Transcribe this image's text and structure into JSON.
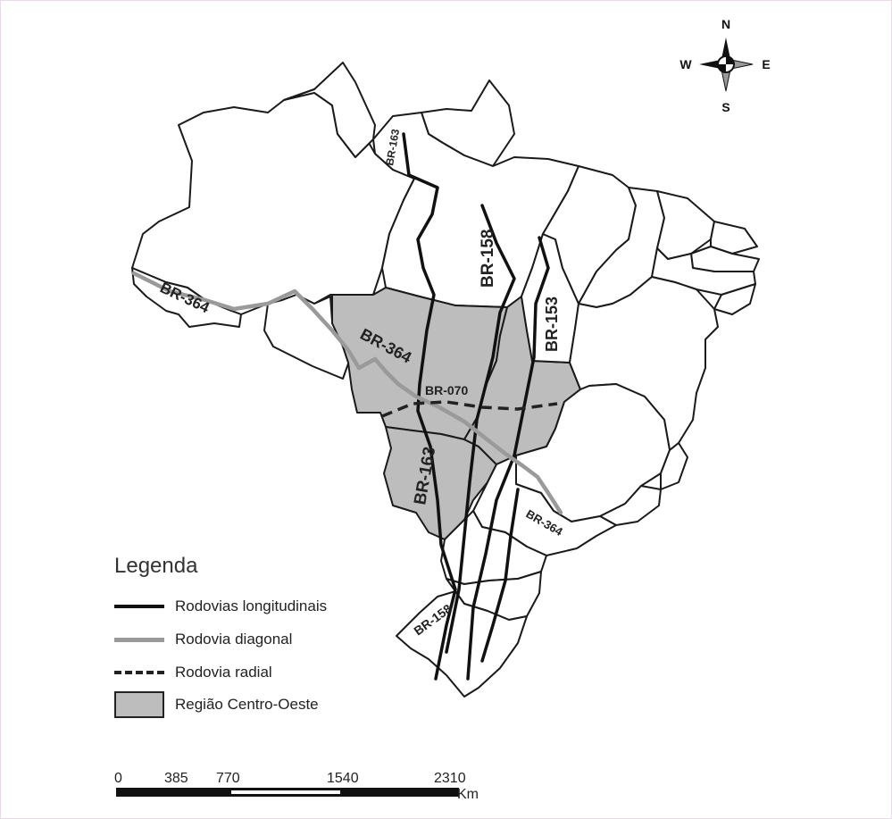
{
  "compass": {
    "north": "N",
    "south": "S",
    "east": "E",
    "west": "W"
  },
  "roads": {
    "br163_north": "BR-163",
    "br158_north": "BR-158",
    "br153": "BR-153",
    "br364_west": "BR-364",
    "br364_center": "BR-364",
    "br070": "BR-070",
    "br163_south": "BR-163",
    "br364_south": "BR-364",
    "br158_south": "BR-158"
  },
  "legend": {
    "title": "Legenda",
    "items": [
      {
        "label": "Rodovias longitudinais",
        "symbol": "black-line"
      },
      {
        "label": "Rodovia diagonal",
        "symbol": "gray-line"
      },
      {
        "label": "Rodovia radial",
        "symbol": "dashed-line"
      },
      {
        "label": "Região Centro-Oeste",
        "symbol": "gray-area"
      }
    ]
  },
  "scale_bar": {
    "ticks": [
      "0",
      "385",
      "770",
      "1540",
      "2310"
    ],
    "unit": "Km"
  },
  "colors": {
    "centro_oeste_fill": "#bdbdbd",
    "longitudinal_road": "#111111",
    "diagonal_road": "#9a9a9a",
    "radial_road": "#222222"
  }
}
